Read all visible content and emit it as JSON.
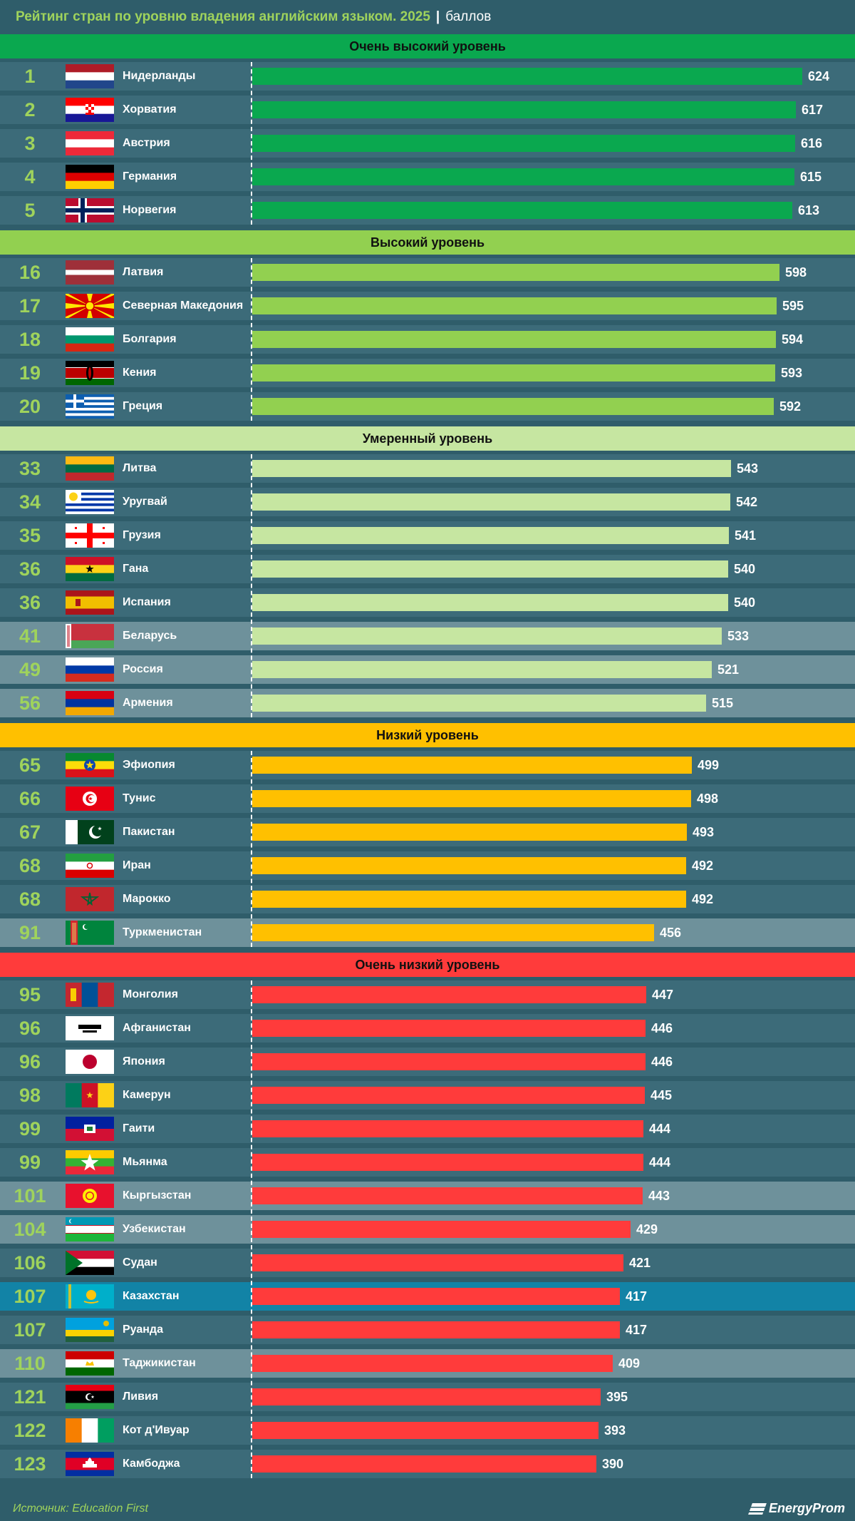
{
  "title": {
    "main": "Рейтинг стран по уровню владения английским языком. 2025",
    "separator": "|",
    "unit": "баллов"
  },
  "source": "Источник: Education First",
  "logo": "EnergyProm",
  "colors": {
    "background": "#2f5d6a",
    "row_dark": "#3c6b79",
    "row_light": "#6e919b",
    "row_highlight": "#1283a6",
    "rank_text": "#9fd35c",
    "very_high": "#0aa84f",
    "high": "#92d050",
    "moderate": "#c6e6a1",
    "low": "#ffc000",
    "very_low": "#ff3b3b"
  },
  "chart_data": {
    "type": "bar",
    "orientation": "horizontal",
    "title": "Рейтинг стран по уровню владения английским языком. 2025",
    "unit": "баллов",
    "groups": [
      {
        "level": "Очень высокий уровень",
        "color": "#0aa84f",
        "items": [
          {
            "rank": "1",
            "country": "Нидерланды",
            "value": 624,
            "flag": "netherlands-flag-icon"
          },
          {
            "rank": "2",
            "country": "Хорватия",
            "value": 617,
            "flag": "croatia-flag-icon"
          },
          {
            "rank": "3",
            "country": "Австрия",
            "value": 616,
            "flag": "austria-flag-icon"
          },
          {
            "rank": "4",
            "country": "Германия",
            "value": 615,
            "flag": "germany-flag-icon"
          },
          {
            "rank": "5",
            "country": "Норвегия",
            "value": 613,
            "flag": "norway-flag-icon"
          }
        ]
      },
      {
        "level": "Высокий уровень",
        "color": "#92d050",
        "items": [
          {
            "rank": "16",
            "country": "Латвия",
            "value": 598,
            "flag": "latvia-flag-icon"
          },
          {
            "rank": "17",
            "country": "Северная Македония",
            "value": 595,
            "flag": "north-macedonia-flag-icon"
          },
          {
            "rank": "18",
            "country": "Болгария",
            "value": 594,
            "flag": "bulgaria-flag-icon"
          },
          {
            "rank": "19",
            "country": "Кения",
            "value": 593,
            "flag": "kenya-flag-icon"
          },
          {
            "rank": "20",
            "country": "Греция",
            "value": 592,
            "flag": "greece-flag-icon"
          }
        ]
      },
      {
        "level": "Умеренный уровень",
        "color": "#c6e6a1",
        "items": [
          {
            "rank": "33",
            "country": "Литва",
            "value": 543,
            "flag": "lithuania-flag-icon"
          },
          {
            "rank": "34",
            "country": "Уругвай",
            "value": 542,
            "flag": "uruguay-flag-icon"
          },
          {
            "rank": "35",
            "country": "Грузия",
            "value": 541,
            "flag": "georgia-flag-icon"
          },
          {
            "rank": "36",
            "country": "Гана",
            "value": 540,
            "flag": "ghana-flag-icon"
          },
          {
            "rank": "36",
            "country": "Испания",
            "value": 540,
            "flag": "spain-flag-icon"
          },
          {
            "rank": "41",
            "country": "Беларусь",
            "value": 533,
            "flag": "belarus-flag-icon",
            "highlight": "light"
          },
          {
            "rank": "49",
            "country": "Россия",
            "value": 521,
            "flag": "russia-flag-icon",
            "highlight": "light"
          },
          {
            "rank": "56",
            "country": "Армения",
            "value": 515,
            "flag": "armenia-flag-icon",
            "highlight": "light"
          }
        ]
      },
      {
        "level": "Низкий уровень",
        "color": "#ffc000",
        "items": [
          {
            "rank": "65",
            "country": "Эфиопия",
            "value": 499,
            "flag": "ethiopia-flag-icon"
          },
          {
            "rank": "66",
            "country": "Тунис",
            "value": 498,
            "flag": "tunisia-flag-icon"
          },
          {
            "rank": "67",
            "country": "Пакистан",
            "value": 493,
            "flag": "pakistan-flag-icon"
          },
          {
            "rank": "68",
            "country": "Иран",
            "value": 492,
            "flag": "iran-flag-icon"
          },
          {
            "rank": "68",
            "country": "Марокко",
            "value": 492,
            "flag": "morocco-flag-icon"
          },
          {
            "rank": "91",
            "country": "Туркменистан",
            "value": 456,
            "flag": "turkmenistan-flag-icon",
            "highlight": "light"
          }
        ]
      },
      {
        "level": "Очень низкий уровень",
        "color": "#ff3b3b",
        "items": [
          {
            "rank": "95",
            "country": "Монголия",
            "value": 447,
            "flag": "mongolia-flag-icon"
          },
          {
            "rank": "96",
            "country": "Афганистан",
            "value": 446,
            "flag": "afghanistan-flag-icon"
          },
          {
            "rank": "96",
            "country": "Япония",
            "value": 446,
            "flag": "japan-flag-icon"
          },
          {
            "rank": "98",
            "country": "Камерун",
            "value": 445,
            "flag": "cameroon-flag-icon"
          },
          {
            "rank": "99",
            "country": "Гаити",
            "value": 444,
            "flag": "haiti-flag-icon"
          },
          {
            "rank": "99",
            "country": "Мьянма",
            "value": 444,
            "flag": "myanmar-flag-icon"
          },
          {
            "rank": "101",
            "country": "Кыргызстан",
            "value": 443,
            "flag": "kyrgyzstan-flag-icon",
            "highlight": "light"
          },
          {
            "rank": "104",
            "country": "Узбекистан",
            "value": 429,
            "flag": "uzbekistan-flag-icon",
            "highlight": "light"
          },
          {
            "rank": "106",
            "country": "Судан",
            "value": 421,
            "flag": "sudan-flag-icon"
          },
          {
            "rank": "107",
            "country": "Казахстан",
            "value": 417,
            "flag": "kazakhstan-flag-icon",
            "highlight": "blue"
          },
          {
            "rank": "107",
            "country": "Руанда",
            "value": 417,
            "flag": "rwanda-flag-icon"
          },
          {
            "rank": "110",
            "country": "Таджикистан",
            "value": 409,
            "flag": "tajikistan-flag-icon",
            "highlight": "light"
          },
          {
            "rank": "121",
            "country": "Ливия",
            "value": 395,
            "flag": "libya-flag-icon"
          },
          {
            "rank": "122",
            "country": "Кот д'Ивуар",
            "value": 393,
            "flag": "ivory-coast-flag-icon"
          },
          {
            "rank": "123",
            "country": "Камбоджа",
            "value": 390,
            "flag": "cambodia-flag-icon"
          }
        ]
      }
    ]
  }
}
